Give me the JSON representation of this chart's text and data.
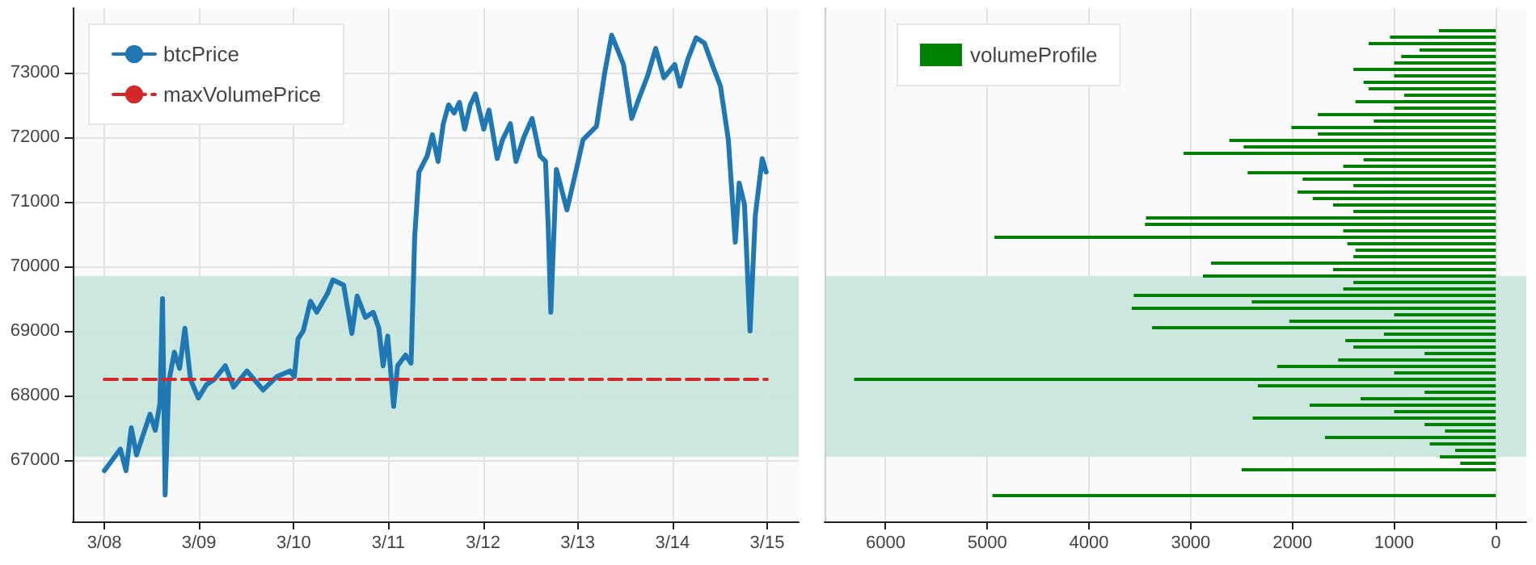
{
  "chart_data": [
    {
      "type": "line",
      "xlim": [
        "--03-07T16:00",
        "--03-15T08:00"
      ],
      "xticks": [
        {
          "value": "--03-08",
          "label": "3/08"
        },
        {
          "value": "--03-09",
          "label": "3/09"
        },
        {
          "value": "--03-10",
          "label": "3/10"
        },
        {
          "value": "--03-11",
          "label": "3/11"
        },
        {
          "value": "--03-12",
          "label": "3/12"
        },
        {
          "value": "--03-13",
          "label": "3/13"
        },
        {
          "value": "--03-14",
          "label": "3/14"
        },
        {
          "value": "--03-15",
          "label": "3/15"
        }
      ],
      "ylim": [
        66050,
        74000
      ],
      "yticks": [
        67000,
        68000,
        69000,
        70000,
        71000,
        72000,
        73000
      ],
      "grid": true,
      "legend": "top left",
      "bands": [
        {
          "axis": "y",
          "from": 67050,
          "to": 69850,
          "color": "#c8e6dc"
        }
      ],
      "series": [
        {
          "name": "btcPrice",
          "color": "#1f77b4",
          "line_style": "solid",
          "x": [
            "--03-08T00:00",
            "--03-08T02:00",
            "--03-08T04:05",
            "--03-08T05:30",
            "--03-08T06:50",
            "--03-08T08:10",
            "--03-08T09:30",
            "--03-08T11:35",
            "--03-08T12:55",
            "--03-08T14:05",
            "--03-08T14:45",
            "--03-08T15:25",
            "--03-08T16:20",
            "--03-08T17:45",
            "--03-08T19:05",
            "--03-08T20:25",
            "--03-08T21:50",
            "--03-08T23:50",
            "--03-09T01:55",
            "--03-09T03:55",
            "--03-09T06:40",
            "--03-09T08:45",
            "--03-09T12:10",
            "--03-09T16:15",
            "--03-09T19:40",
            "--03-09T23:05",
            "--03-10T00:10",
            "--03-10T01:05",
            "--03-10T02:25",
            "--03-10T04:15",
            "--03-10T05:50",
            "--03-10T08:35",
            "--03-10T09:55",
            "--03-10T12:40",
            "--03-10T14:45",
            "--03-10T16:05",
            "--03-10T18:10",
            "--03-10T20:10",
            "--03-10T21:35",
            "--03-10T22:40",
            "--03-10T23:50",
            "--03-11T01:20",
            "--03-11T02:20",
            "--03-11T04:20",
            "--03-11T05:45",
            "--03-11T06:40",
            "--03-11T07:45",
            "--03-11T09:50",
            "--03-11T11:10",
            "--03-11T12:35",
            "--03-11T13:55",
            "--03-11T15:15",
            "--03-11T16:40",
            "--03-11T18:00",
            "--03-11T19:20",
            "--03-11T20:45",
            "--03-11T22:05",
            "--03-12T00:10",
            "--03-12T01:30",
            "--03-12T03:35",
            "--03-12T04:55",
            "--03-12T06:55",
            "--03-12T08:20",
            "--03-12T10:20",
            "--03-12T12:25",
            "--03-12T14:25",
            "--03-12T15:50",
            "--03-12T16:30",
            "--03-12T17:10",
            "--03-12T18:35",
            "--03-12T21:15",
            "--03-12T23:20",
            "--03-13T01:20",
            "--03-13T04:45",
            "--03-13T06:50",
            "--03-13T08:35",
            "--03-13T10:15",
            "--03-13T11:35",
            "--03-13T13:40",
            "--03-13T15:40",
            "--03-13T17:45",
            "--03-13T19:45",
            "--03-13T21:50",
            "--03-14T00:35",
            "--03-14T01:55",
            "--03-14T03:55",
            "--03-14T06:00",
            "--03-14T08:05",
            "--03-14T10:05",
            "--03-14T12:10",
            "--03-14T14:10",
            "--03-14T15:55",
            "--03-14T16:55",
            "--03-14T18:15",
            "--03-14T19:40",
            "--03-14T21:00",
            "--03-14T22:45",
            "--03-14T23:45"
          ],
          "values": [
            66835,
            67000,
            67170,
            66835,
            67500,
            67080,
            67330,
            67710,
            67460,
            67875,
            69500,
            66460,
            68210,
            68670,
            68420,
            69040,
            68250,
            67960,
            68170,
            68250,
            68460,
            68130,
            68380,
            68085,
            68290,
            68380,
            68290,
            68875,
            69000,
            69460,
            69290,
            69580,
            69790,
            69710,
            68960,
            69540,
            69210,
            69290,
            69040,
            68460,
            68920,
            67830,
            68460,
            68625,
            68500,
            70460,
            71460,
            71710,
            72040,
            71625,
            72210,
            72500,
            72375,
            72540,
            72125,
            72500,
            72670,
            72125,
            72420,
            71670,
            71960,
            72210,
            71625,
            72000,
            72290,
            71710,
            71625,
            70625,
            69290,
            71500,
            70875,
            71420,
            71960,
            72170,
            73000,
            73580,
            73330,
            73125,
            72290,
            72625,
            72960,
            73375,
            72920,
            73125,
            72790,
            73210,
            73540,
            73460,
            73125,
            72790,
            71960,
            70375,
            71290,
            70960,
            69000,
            70790,
            71670,
            71460
          ]
        },
        {
          "name": "maxVolumePrice",
          "color": "#d62728",
          "line_style": "dashed",
          "x": [
            "--03-08T00:00",
            "--03-15T00:00"
          ],
          "values": [
            68250,
            68250
          ]
        }
      ]
    },
    {
      "type": "histogram",
      "orientation": "horizontal",
      "xlim": [
        6600,
        -300
      ],
      "xticks": [
        6000,
        5000,
        4000,
        3000,
        2000,
        1000,
        0
      ],
      "ylim": [
        66050,
        74000
      ],
      "tick_labels": "x",
      "grid": true,
      "legend": "top left",
      "bands": [
        {
          "axis": "y",
          "from": 67050,
          "to": 69850,
          "color": "#c8e6dc"
        }
      ],
      "bins": [
        66400,
        66500,
        66600,
        66700,
        66800,
        66900,
        67000,
        67100,
        67200,
        67300,
        67400,
        67500,
        67600,
        67700,
        67800,
        67900,
        68000,
        68100,
        68200,
        68300,
        68400,
        68500,
        68600,
        68700,
        68800,
        68900,
        69000,
        69100,
        69200,
        69300,
        69400,
        69500,
        69600,
        69700,
        69800,
        69900,
        70000,
        70100,
        70200,
        70300,
        70400,
        70500,
        70600,
        70700,
        70800,
        70900,
        71000,
        71100,
        71200,
        71300,
        71400,
        71500,
        71600,
        71700,
        71800,
        71900,
        72000,
        72100,
        72200,
        72300,
        72400,
        72500,
        72600,
        72700,
        72800,
        72900,
        73000,
        73100,
        73200,
        73300,
        73400,
        73500,
        73600,
        73700
      ],
      "series": [
        {
          "name": "volumeProfile",
          "color": "#008000",
          "values": [
            4950,
            0,
            0,
            0,
            2500,
            350,
            550,
            400,
            650,
            1680,
            500,
            700,
            2390,
            1000,
            1830,
            1330,
            700,
            2340,
            6310,
            1000,
            2150,
            1550,
            700,
            1400,
            1480,
            1100,
            3380,
            2030,
            1000,
            3580,
            2400,
            3560,
            1500,
            1400,
            2880,
            1600,
            2800,
            1400,
            1380,
            1460,
            4930,
            1500,
            3450,
            3440,
            1400,
            1600,
            1800,
            1950,
            1400,
            1900,
            2440,
            1500,
            1300,
            3070,
            2480,
            2620,
            1750,
            2010,
            1200,
            1750,
            1000,
            1380,
            900,
            1250,
            1300,
            1000,
            1400,
            1000,
            930,
            750,
            1250,
            1040,
            560
          ]
        }
      ]
    }
  ]
}
